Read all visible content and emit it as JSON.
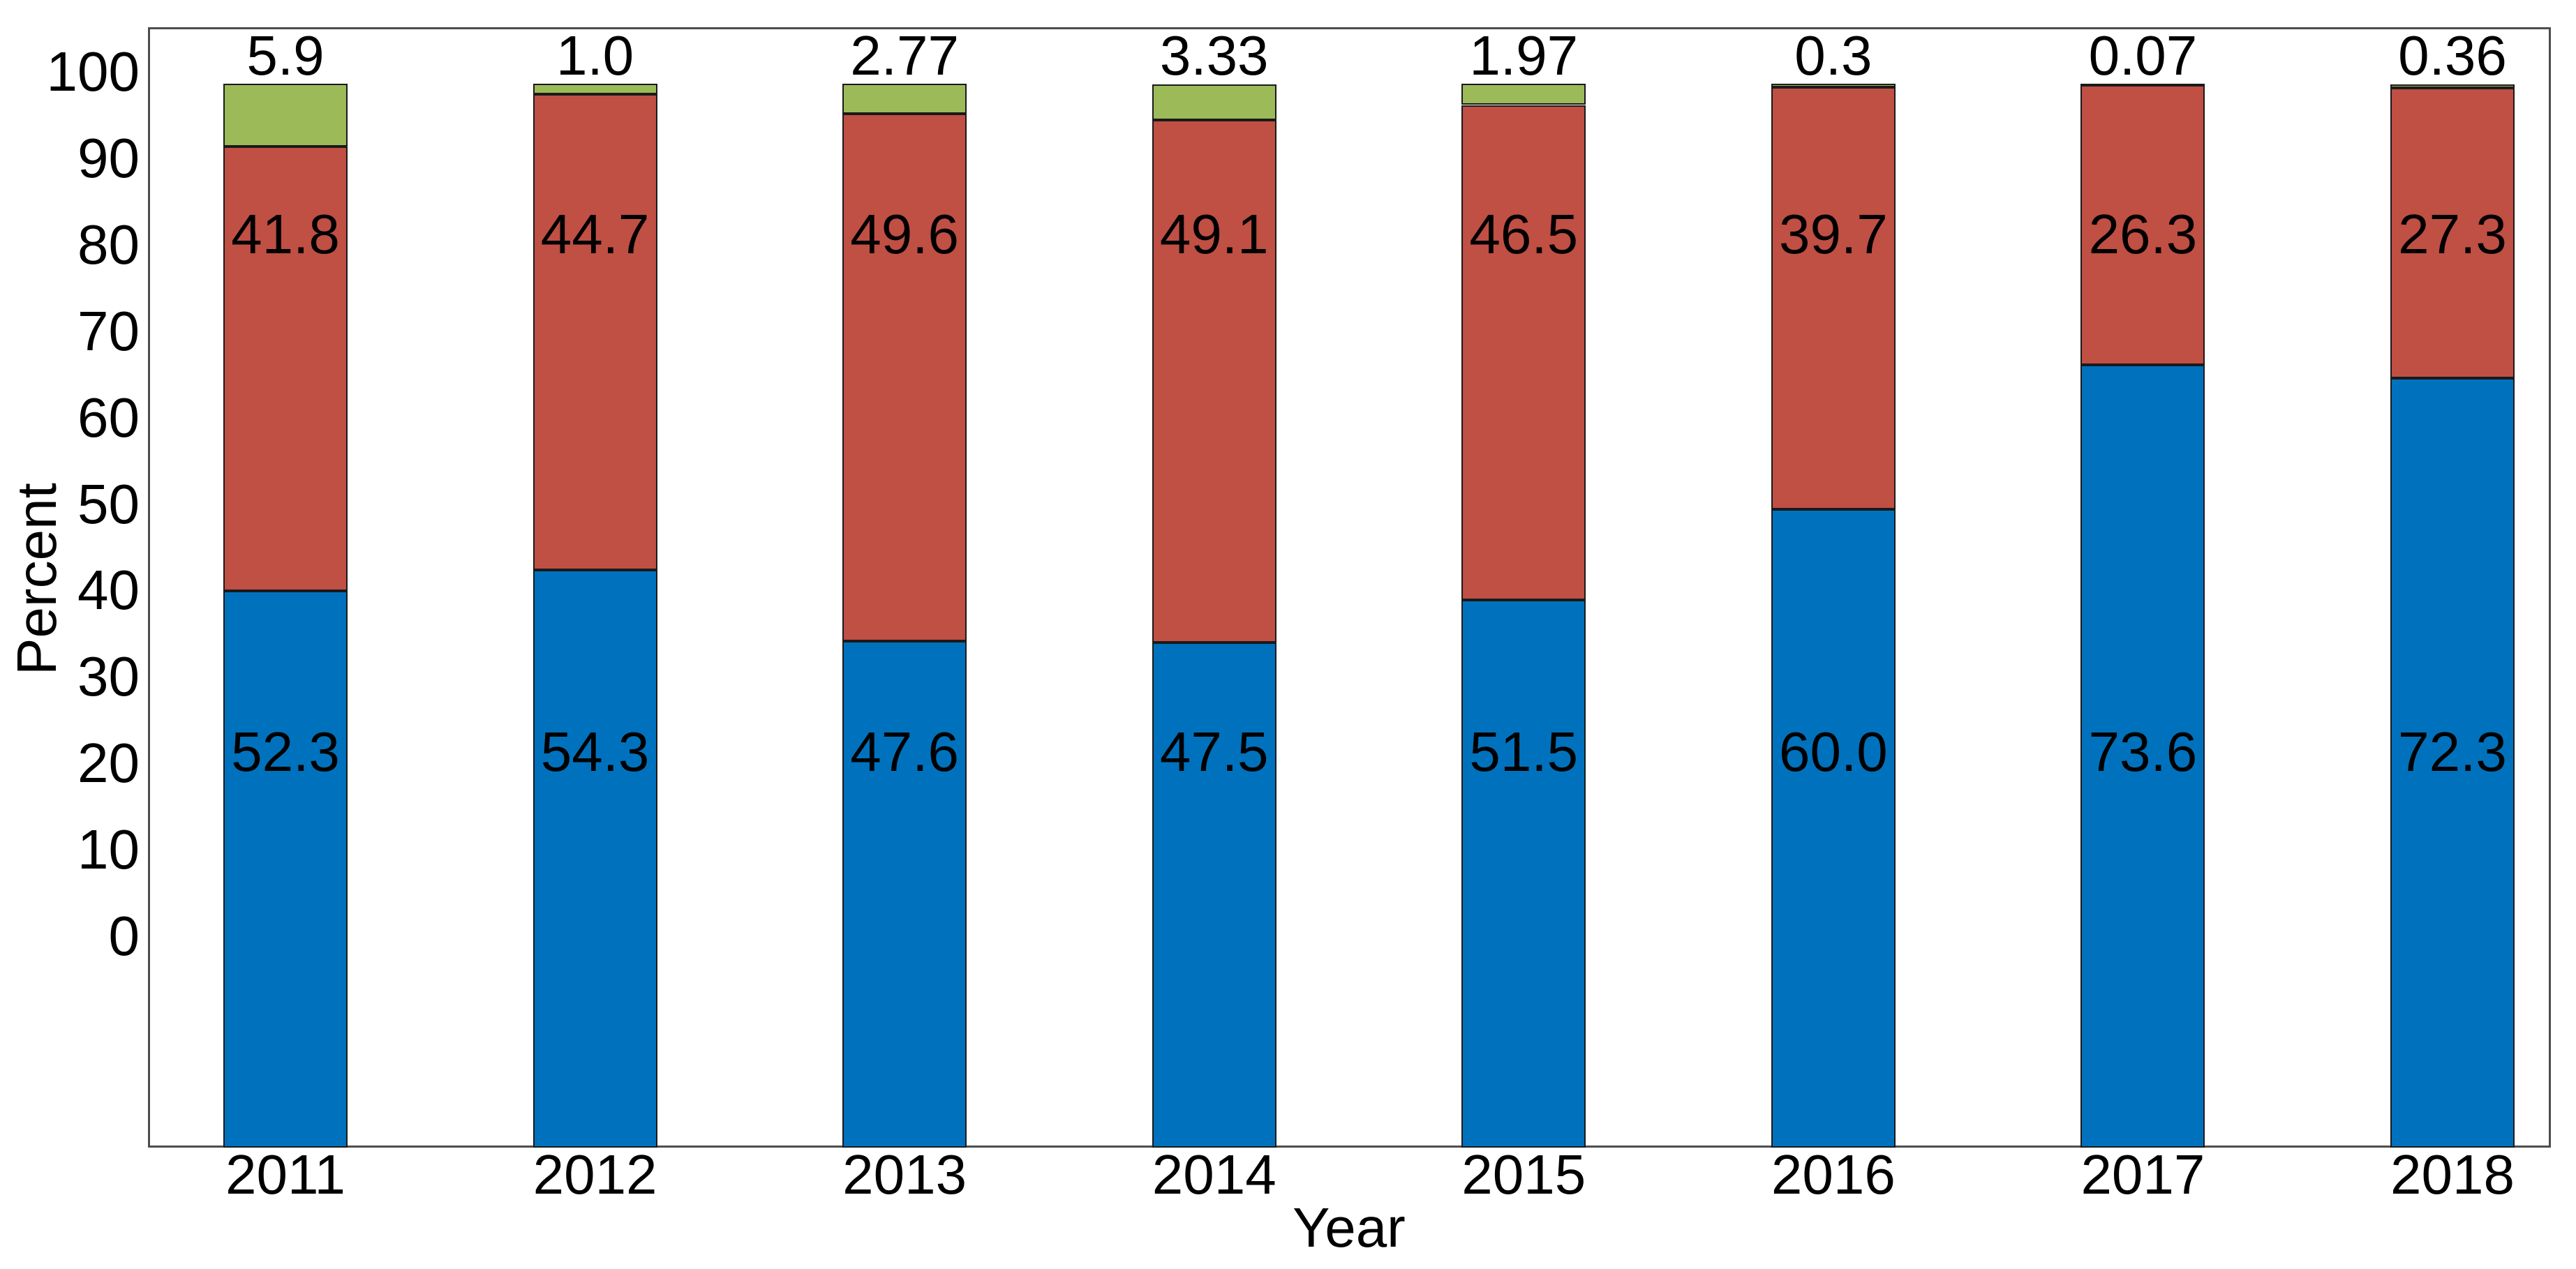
{
  "chart_data": {
    "type": "bar",
    "stacked": true,
    "title": "",
    "xlabel": "Year",
    "ylabel": "Percent",
    "categories": [
      "2011",
      "2012",
      "2013",
      "2014",
      "2015",
      "2016",
      "2017",
      "2018"
    ],
    "series": [
      {
        "name": "blue-bottom",
        "color": "#0072bd",
        "values": [
          52.3,
          54.3,
          47.6,
          47.5,
          51.5,
          60.0,
          73.6,
          72.3
        ],
        "labels": [
          "52.3",
          "54.3",
          "47.6",
          "47.5",
          "51.5",
          "60.0",
          "73.6",
          "72.3"
        ],
        "label_position": "inside-lower"
      },
      {
        "name": "red-middle",
        "color": "#c04f44",
        "values": [
          41.8,
          44.7,
          49.6,
          49.1,
          46.5,
          39.7,
          26.3,
          27.3
        ],
        "labels": [
          "41.8",
          "44.7",
          "49.6",
          "49.1",
          "46.5",
          "39.7",
          "26.3",
          "27.3"
        ],
        "label_position": "inside-upper"
      },
      {
        "name": "green-top",
        "color": "#9cbb58",
        "values": [
          5.9,
          1.0,
          2.77,
          3.33,
          1.97,
          0.3,
          0.07,
          0.36
        ],
        "labels": [
          "5.9",
          "1.0",
          "2.77",
          "3.33",
          "1.97",
          "0.3",
          "0.07",
          "0.36"
        ],
        "label_position": "above-bar"
      }
    ],
    "ytick_labels": [
      "0",
      "10",
      "20",
      "30",
      "40",
      "50",
      "60",
      "70",
      "80",
      "90",
      "100"
    ],
    "ylim": [
      0,
      100
    ],
    "grid": false,
    "legend": "none",
    "colors": {
      "bar_outline": "#1a1a1a",
      "axis_border": "#4d4d4d",
      "text": "#000000",
      "background": "#ffffff"
    }
  }
}
